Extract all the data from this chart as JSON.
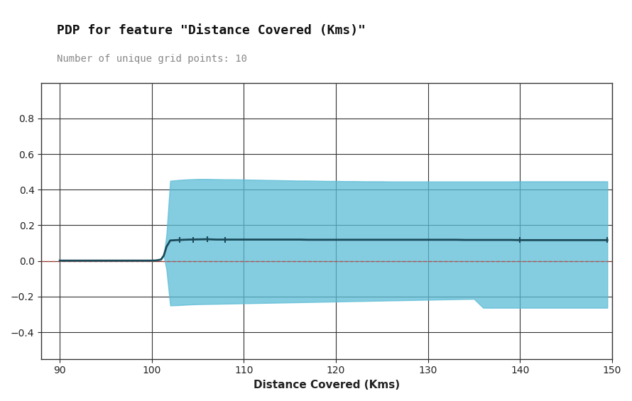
{
  "title": "PDP for feature \"Distance Covered (Kms)\"",
  "subtitle": "Number of unique grid points: 10",
  "xlabel": "Distance Covered (Kms)",
  "ylabel": "",
  "xlim": [
    88,
    150
  ],
  "ylim": [
    -0.55,
    1.0
  ],
  "yticks": [
    -0.4,
    -0.2,
    0.0,
    0.2,
    0.4,
    0.6,
    0.8
  ],
  "xticks": [
    90,
    100,
    110,
    120,
    130,
    140,
    150
  ],
  "background_color": "#ffffff",
  "grid_color": "#000000",
  "line_color": "#1a4a5a",
  "fill_color": "#5bbcd6",
  "fill_alpha": 0.75,
  "zero_line_color": "#cc4433",
  "x_data": [
    90,
    90.5,
    91,
    92,
    93,
    94,
    95,
    96,
    97,
    98,
    99,
    100,
    100.5,
    101,
    101.3,
    101.6,
    102,
    103,
    104,
    105,
    106,
    107,
    108,
    109,
    110,
    111,
    112,
    113,
    114,
    115,
    116,
    117,
    118,
    119,
    120,
    121,
    122,
    123,
    124,
    125,
    126,
    127,
    128,
    129,
    130,
    131,
    132,
    133,
    134,
    135,
    136,
    137,
    138,
    139,
    140,
    141,
    142,
    143,
    144,
    145,
    146,
    147,
    148,
    149,
    149.5
  ],
  "y_mean": [
    0.002,
    0.002,
    0.002,
    0.002,
    0.002,
    0.002,
    0.002,
    0.002,
    0.002,
    0.002,
    0.002,
    0.002,
    0.003,
    0.008,
    0.03,
    0.08,
    0.115,
    0.118,
    0.12,
    0.121,
    0.122,
    0.12,
    0.12,
    0.12,
    0.12,
    0.12,
    0.12,
    0.12,
    0.12,
    0.12,
    0.12,
    0.119,
    0.119,
    0.119,
    0.119,
    0.119,
    0.119,
    0.119,
    0.119,
    0.119,
    0.119,
    0.119,
    0.119,
    0.119,
    0.119,
    0.119,
    0.119,
    0.119,
    0.118,
    0.118,
    0.118,
    0.118,
    0.118,
    0.118,
    0.117,
    0.117,
    0.117,
    0.117,
    0.117,
    0.117,
    0.117,
    0.117,
    0.117,
    0.117,
    0.117
  ],
  "y_upper": [
    0.002,
    0.002,
    0.002,
    0.002,
    0.002,
    0.002,
    0.002,
    0.002,
    0.002,
    0.002,
    0.002,
    0.002,
    0.003,
    0.008,
    0.03,
    0.15,
    0.45,
    0.455,
    0.458,
    0.46,
    0.46,
    0.459,
    0.458,
    0.458,
    0.457,
    0.456,
    0.455,
    0.454,
    0.453,
    0.452,
    0.451,
    0.451,
    0.45,
    0.449,
    0.449,
    0.448,
    0.448,
    0.447,
    0.447,
    0.447,
    0.446,
    0.446,
    0.446,
    0.446,
    0.446,
    0.446,
    0.446,
    0.446,
    0.446,
    0.446,
    0.446,
    0.446,
    0.446,
    0.446,
    0.447,
    0.447,
    0.447,
    0.447,
    0.447,
    0.447,
    0.447,
    0.447,
    0.447,
    0.447,
    0.447
  ],
  "y_lower": [
    0.002,
    0.002,
    0.002,
    0.002,
    0.002,
    0.002,
    0.002,
    0.002,
    0.002,
    0.002,
    0.002,
    0.002,
    0.003,
    0.008,
    0.03,
    -0.05,
    -0.25,
    -0.248,
    -0.245,
    -0.243,
    -0.242,
    -0.241,
    -0.24,
    -0.239,
    -0.238,
    -0.237,
    -0.236,
    -0.235,
    -0.234,
    -0.233,
    -0.232,
    -0.231,
    -0.23,
    -0.229,
    -0.228,
    -0.227,
    -0.226,
    -0.225,
    -0.224,
    -0.223,
    -0.222,
    -0.221,
    -0.22,
    -0.219,
    -0.218,
    -0.217,
    -0.216,
    -0.215,
    -0.214,
    -0.213,
    -0.263,
    -0.263,
    -0.263,
    -0.263,
    -0.263,
    -0.263,
    -0.263,
    -0.263,
    -0.263,
    -0.263,
    -0.263,
    -0.263,
    -0.263,
    -0.263,
    -0.263
  ],
  "title_fontsize": 13,
  "subtitle_fontsize": 10,
  "axis_label_fontsize": 11,
  "tick_fontsize": 10,
  "line_width": 2.0,
  "tick_marks_x": [
    103,
    104.5,
    106,
    108,
    140,
    149.5
  ],
  "tick_marks_y": [
    0.119,
    0.12,
    0.121,
    0.12,
    0.117,
    0.117
  ]
}
